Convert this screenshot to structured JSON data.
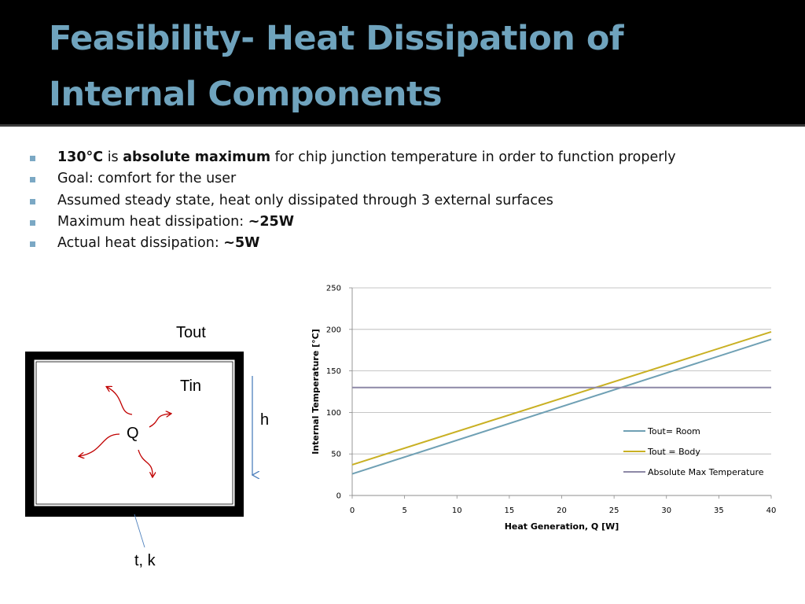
{
  "slide": {
    "title_line1": "Feasibility- Heat Dissipation of",
    "title_line2": "Internal Components",
    "title_color": "#6fa3bd",
    "bullets": [
      {
        "b1": "130°C",
        "t1": " is ",
        "b2": "absolute maximum",
        "t2": " for chip junction temperature in order to function properly"
      },
      {
        "t1": "Goal: comfort for the user"
      },
      {
        "t1": "Assumed steady state, heat only dissipated through 3 external surfaces"
      },
      {
        "t1": "Maximum heat dissipation: ",
        "b1": "~25W"
      },
      {
        "t1": "Actual heat dissipation: ",
        "b1": "~5W"
      }
    ]
  },
  "diagram": {
    "tout": "Tout",
    "tin": "Tin",
    "h": "h",
    "q": "Q",
    "tk": "t, k",
    "arrow_color": "#c00000",
    "h_arrow_color": "#4f81bd"
  },
  "chart_data": {
    "type": "line",
    "x": [
      0,
      40
    ],
    "series": [
      {
        "name": "Tout= Room",
        "color": "#6fa0b4",
        "values": [
          26,
          188
        ]
      },
      {
        "name": "Tout = Body",
        "color": "#c9b023",
        "values": [
          37,
          197
        ]
      },
      {
        "name": "Absolute Max Temperature",
        "color": "#8d88a6",
        "values": [
          130,
          130
        ]
      }
    ],
    "xlabel": "Heat Generation, Q [W]",
    "ylabel": "Internal Temperature [°C]",
    "xlim": [
      0,
      40
    ],
    "ylim": [
      0,
      250
    ],
    "xticks": [
      "0",
      "5",
      "10",
      "15",
      "20",
      "25",
      "30",
      "35",
      "40"
    ],
    "yticks": [
      "0",
      "50",
      "100",
      "150",
      "200",
      "250"
    ],
    "grid": true,
    "legend_position": "right"
  }
}
